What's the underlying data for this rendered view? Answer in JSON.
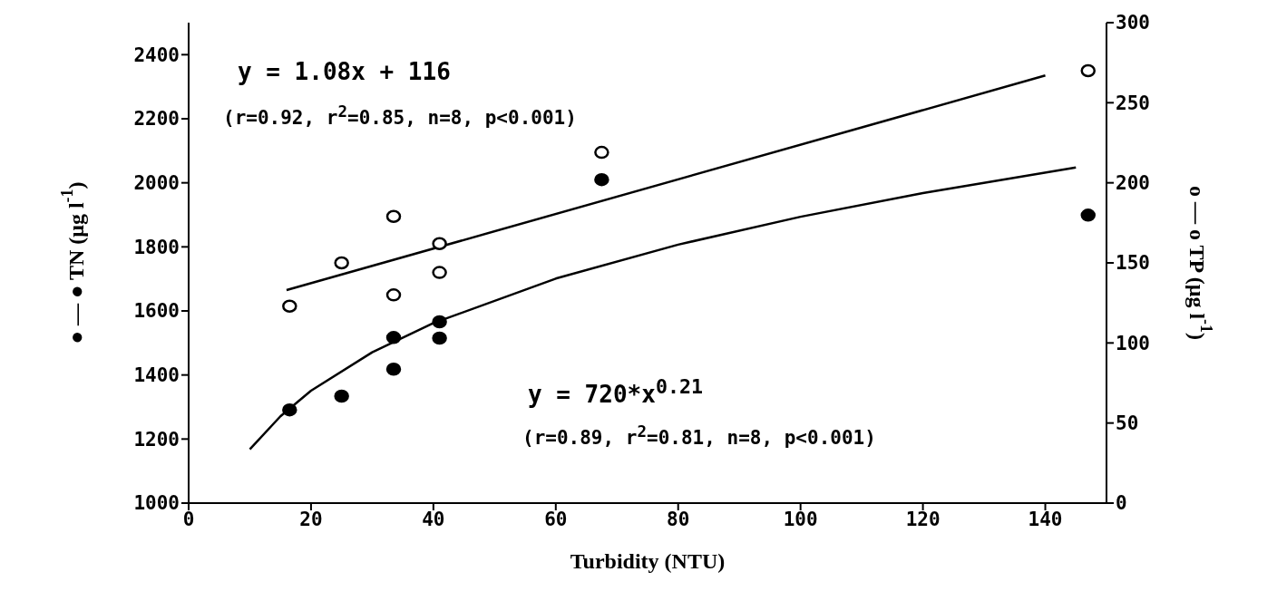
{
  "chart_data": {
    "type": "scatter",
    "xlabel": "Turbidity (NTU)",
    "ylabel": "● — ● TN (μg l$^{-1}$)",
    "y2label": "o — o TP (μg l$^{-1}$)",
    "xlim": [
      0,
      150
    ],
    "xticks": [
      0,
      20,
      40,
      60,
      80,
      100,
      120,
      140
    ],
    "ylim": [
      1000,
      2500
    ],
    "yticks": [
      1000,
      1200,
      1400,
      1600,
      1800,
      2000,
      2200,
      2400
    ],
    "y2lim": [
      0,
      300
    ],
    "y2ticks": [
      0,
      50,
      100,
      150,
      200,
      250,
      300
    ],
    "grid": false,
    "legend": false,
    "marker": "circle",
    "series": [
      {
        "color": "#000000",
        "x": [
          16.5,
          25,
          33.5,
          33.5,
          41,
          41,
          67.5,
          147
        ],
        "values": [
          1291,
          1334,
          1517,
          1418,
          1566,
          1515,
          2010,
          1899
        ]
      },
      {
        "axis": "y2",
        "color": "#000000",
        "x": [
          16.5,
          25,
          33.5,
          33.5,
          41,
          41,
          67.5,
          147
        ],
        "values": [
          123,
          150,
          179,
          130,
          144,
          162,
          219,
          270
        ]
      },
      {
        "type": "line",
        "axis": "y2",
        "color": "#000000",
        "line_style": "solid",
        "marker": "none",
        "x": [
          16,
          140
        ],
        "values": [
          133,
          267
        ]
      },
      {
        "type": "line",
        "color": "#000000",
        "line_style": "solid",
        "marker": "none",
        "x": [
          10,
          15,
          20,
          30,
          40,
          60,
          80,
          100,
          120,
          145
        ],
        "values": [
          1168,
          1271,
          1351,
          1471,
          1562,
          1701,
          1807,
          1894,
          1968,
          2048
        ]
      }
    ],
    "annotations": [
      "y = 1.08x + 116",
      "(r=0.92, r$^{2}$=0.85, n=8, p<0.001)",
      "y = 720*x$^{0.21}$",
      "(r=0.89, r$^{2}$=0.81, n=8, p<0.001)"
    ]
  }
}
